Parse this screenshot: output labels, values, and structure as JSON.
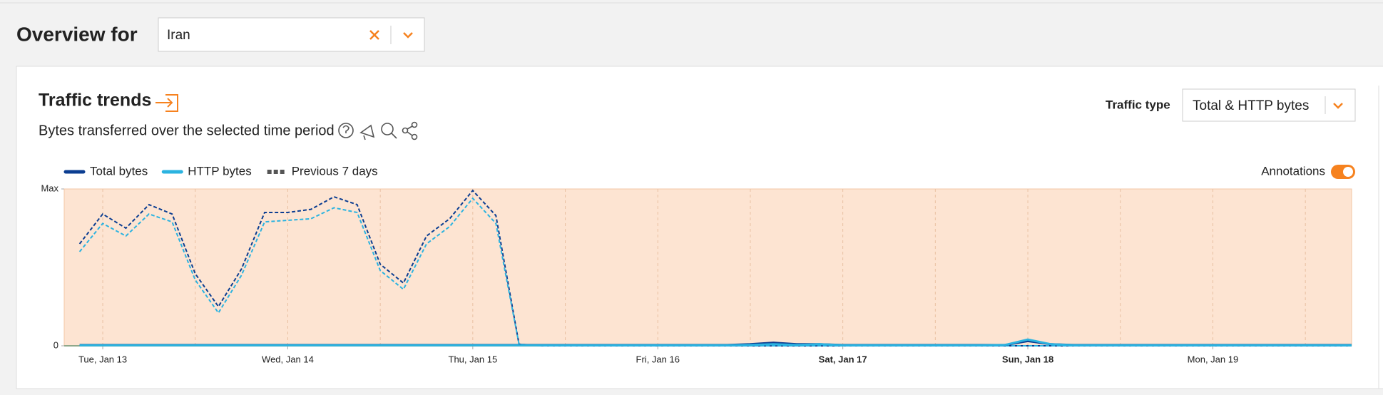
{
  "header": {
    "title": "Overview for",
    "location": "Iran"
  },
  "card": {
    "title": "Traffic trends",
    "subtitle": "Bytes transferred over the selected time period",
    "traffic_type_label": "Traffic type",
    "traffic_type": "Total & HTTP bytes",
    "annotations_label": "Annotations",
    "annotations_on": true
  },
  "chart_data": {
    "type": "line",
    "x": [
      -3,
      0,
      3,
      6,
      9,
      12,
      15,
      18,
      21,
      24,
      27,
      30,
      33,
      36,
      39,
      42,
      45,
      48,
      51,
      54,
      57,
      60,
      63,
      66,
      69,
      72,
      75,
      78,
      81,
      84,
      87,
      90,
      93,
      96,
      99,
      102,
      105,
      108,
      111,
      114,
      117,
      120,
      123,
      126,
      129,
      132,
      135,
      138,
      141,
      144,
      147,
      150,
      153,
      156,
      159,
      162
    ],
    "series": [
      {
        "name": "Total bytes",
        "color": "#0b3d91",
        "values": [
          0.005,
          0.005,
          0.005,
          0.005,
          0.005,
          0.005,
          0.005,
          0.005,
          0.005,
          0.005,
          0.005,
          0.005,
          0.005,
          0.005,
          0.005,
          0.005,
          0.005,
          0.005,
          0.005,
          0.005,
          0.005,
          0.005,
          0.005,
          0.005,
          0.005,
          0.005,
          0.005,
          0.005,
          0.005,
          0.01,
          0.02,
          0.01,
          0.01,
          0.005,
          0.005,
          0.005,
          0.005,
          0.005,
          0.005,
          0.005,
          0.005,
          0.03,
          0.01,
          0.005,
          0.005,
          0.005,
          0.005,
          0.005,
          0.005,
          0.005,
          0.005,
          0.005,
          0.005,
          0.005,
          0.005,
          0.005
        ]
      },
      {
        "name": "HTTP bytes",
        "color": "#2bb3e0",
        "values": [
          0.003,
          0.003,
          0.003,
          0.003,
          0.003,
          0.003,
          0.003,
          0.003,
          0.003,
          0.003,
          0.003,
          0.003,
          0.003,
          0.003,
          0.003,
          0.003,
          0.003,
          0.003,
          0.003,
          0.003,
          0.003,
          0.003,
          0.003,
          0.003,
          0.003,
          0.003,
          0.003,
          0.003,
          0.003,
          0.005,
          0.01,
          0.005,
          0.01,
          0.003,
          0.003,
          0.003,
          0.003,
          0.003,
          0.003,
          0.003,
          0.005,
          0.04,
          0.01,
          0.003,
          0.003,
          0.003,
          0.003,
          0.003,
          0.003,
          0.003,
          0.003,
          0.003,
          0.003,
          0.003,
          0.003,
          0.003
        ]
      }
    ],
    "previous": {
      "name": "Previous 7 days",
      "color": "#555555",
      "series": [
        {
          "color": "#0b3d91",
          "values": [
            0.65,
            0.84,
            0.75,
            0.9,
            0.84,
            0.46,
            0.25,
            0.49,
            0.85,
            0.85,
            0.87,
            0.95,
            0.9,
            0.52,
            0.4,
            0.7,
            0.81,
            0.99,
            0.83,
            0.01,
            0,
            0,
            0,
            0,
            0,
            0,
            0,
            0,
            0,
            0,
            0,
            0,
            0,
            0,
            0,
            0,
            0,
            0,
            0,
            0,
            0,
            0,
            0,
            0,
            0,
            0,
            0,
            0,
            0,
            0,
            0,
            0,
            0,
            0,
            0,
            0
          ]
        },
        {
          "color": "#2bb3e0",
          "values": [
            0.6,
            0.78,
            0.7,
            0.84,
            0.79,
            0.42,
            0.21,
            0.45,
            0.79,
            0.8,
            0.81,
            0.88,
            0.85,
            0.48,
            0.36,
            0.65,
            0.76,
            0.94,
            0.78,
            0.01,
            0,
            0,
            0,
            0,
            0,
            0,
            0,
            0,
            0,
            0,
            0,
            0,
            0,
            0,
            0,
            0,
            0,
            0,
            0,
            0,
            0,
            0,
            0,
            0,
            0,
            0,
            0,
            0,
            0,
            0,
            0,
            0,
            0,
            0,
            0,
            0
          ]
        }
      ]
    },
    "xlim": [
      -5,
      162
    ],
    "xticks": [
      {
        "value": 0,
        "label": "Tue, Jan 13"
      },
      {
        "value": 24,
        "label": "Wed, Jan 14"
      },
      {
        "value": 48,
        "label": "Thu, Jan 15"
      },
      {
        "value": 72,
        "label": "Fri, Jan 16"
      },
      {
        "value": 96,
        "label": "Sat, Jan 17",
        "bold": true
      },
      {
        "value": 120,
        "label": "Sun, Jan 18",
        "bold": true
      },
      {
        "value": 144,
        "label": "Mon, Jan 19"
      }
    ],
    "xminor": [
      12,
      36,
      60,
      84,
      108,
      132,
      156
    ],
    "ylim": [
      0,
      1
    ],
    "yticks": [
      {
        "value": 1,
        "label": "Max"
      },
      0
    ],
    "grid": true,
    "annotation_color": "#fde4d2"
  }
}
